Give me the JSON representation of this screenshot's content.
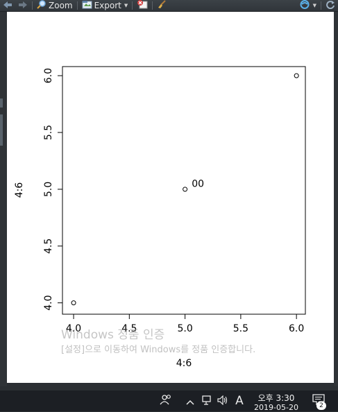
{
  "toolbar": {
    "zoom_label": "Zoom",
    "export_label": "Export",
    "icons": [
      "back-arrow-icon",
      "forward-arrow-icon",
      "zoom-icon",
      "export-icon",
      "remove-plot-icon",
      "broom-icon",
      "publish-icon",
      "refresh-icon"
    ]
  },
  "chart_data": {
    "type": "scatter",
    "x": [
      4,
      5,
      6
    ],
    "y": [
      4,
      5,
      6
    ],
    "xlabel": "4:6",
    "ylabel": "4:6",
    "xlim": [
      3.9,
      6.08
    ],
    "ylim": [
      3.9,
      6.08
    ],
    "xticks": [
      "4.0",
      "4.5",
      "5.0",
      "5.5",
      "6.0"
    ],
    "yticks": [
      "4.0",
      "4.5",
      "5.0",
      "5.5",
      "6.0"
    ],
    "annotations": [
      {
        "text": "00",
        "x": 5.06,
        "y": 5.02
      }
    ],
    "grid": false
  },
  "watermark": {
    "title": "Windows 정품 인증",
    "subtitle": "[설정]으로 이동하여 Windows를 정품 인증합니다."
  },
  "taskbar": {
    "ime": "A",
    "time": "오후 3:30",
    "date": "2019-05-20",
    "notifications": "2",
    "icons": [
      "people-icon",
      "chevron-up-icon",
      "network-icon",
      "volume-icon",
      "notification-icon"
    ]
  }
}
